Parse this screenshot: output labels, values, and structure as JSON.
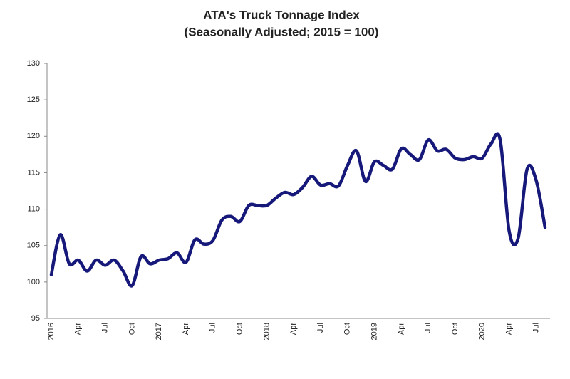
{
  "chart_data": {
    "type": "line",
    "title": "ATA's Truck Tonnage Index",
    "subtitle": "(Seasonally Adjusted; 2015 = 100)",
    "categories": [
      "2016",
      null,
      null,
      "Apr",
      null,
      null,
      "Jul",
      null,
      null,
      "Oct",
      null,
      null,
      "2017",
      null,
      null,
      "Apr",
      null,
      null,
      "Jul",
      null,
      null,
      "Oct",
      null,
      null,
      "2018",
      null,
      null,
      "Apr",
      null,
      null,
      "Jul",
      null,
      null,
      "Oct",
      null,
      null,
      "2019",
      null,
      null,
      "Apr",
      null,
      null,
      "Jul",
      null,
      null,
      "Oct",
      null,
      null,
      "2020",
      null,
      null,
      "Apr",
      null,
      null,
      "Jul",
      null
    ],
    "values": [
      101.0,
      106.5,
      102.5,
      103.0,
      101.5,
      103.0,
      102.3,
      103.0,
      101.5,
      99.5,
      103.5,
      102.5,
      103.0,
      103.2,
      104.0,
      102.7,
      105.8,
      105.2,
      105.7,
      108.5,
      109.0,
      108.3,
      110.5,
      110.5,
      110.5,
      111.5,
      112.3,
      112.0,
      113.0,
      114.5,
      113.3,
      113.5,
      113.2,
      116.0,
      118.0,
      113.8,
      116.5,
      116.0,
      115.5,
      118.3,
      117.5,
      116.8,
      119.5,
      118.0,
      118.2,
      117.0,
      116.8,
      117.2,
      117.0,
      119.0,
      119.5,
      107.0,
      106.0,
      115.5,
      114.0,
      107.5
    ],
    "color": "#16197a",
    "ylim": [
      95,
      130
    ],
    "yticks": [
      95,
      100,
      105,
      110,
      115,
      120,
      125,
      130
    ],
    "grid": false
  }
}
